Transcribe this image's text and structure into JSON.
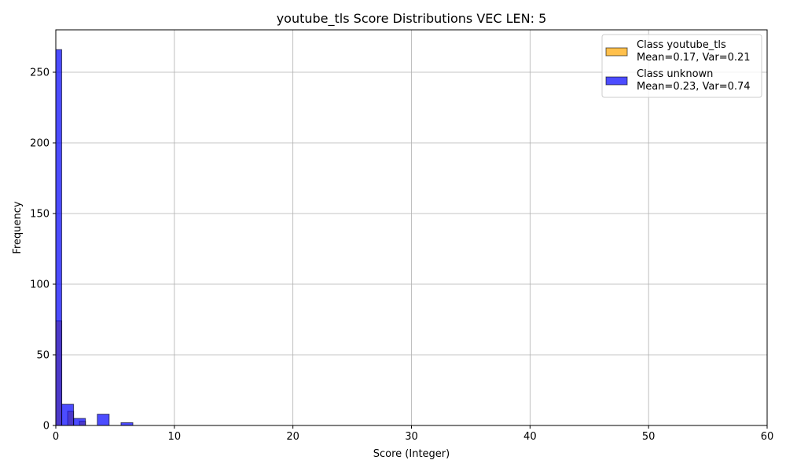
{
  "chart_data": {
    "type": "bar",
    "title": "youtube_tls Score Distributions VEC LEN: 5",
    "xlabel": "Score (Integer)",
    "ylabel": "Frequency",
    "xlim": [
      0,
      60
    ],
    "ylim": [
      0,
      280
    ],
    "xticks": [
      0,
      10,
      20,
      30,
      40,
      50,
      60
    ],
    "yticks": [
      0,
      50,
      100,
      150,
      200,
      250
    ],
    "grid": true,
    "legend_position": "top-right",
    "series": [
      {
        "name": "Class youtube_tls",
        "legend_stats": "Mean=0.17, Var=0.21",
        "color": "#FFA500",
        "bins": [
          {
            "x0": 0.0,
            "x1": 0.5,
            "count": 74
          },
          {
            "x0": 0.5,
            "x1": 1.0,
            "count": 0
          },
          {
            "x0": 1.0,
            "x1": 1.5,
            "count": 10
          },
          {
            "x0": 1.5,
            "x1": 2.0,
            "count": 0
          },
          {
            "x0": 2.0,
            "x1": 2.5,
            "count": 3
          }
        ]
      },
      {
        "name": "Class unknown",
        "legend_stats": "Mean=0.23, Var=0.74",
        "color": "#0000FF",
        "bins": [
          {
            "x0": 0.0,
            "x1": 0.5,
            "count": 266
          },
          {
            "x0": 0.5,
            "x1": 1.5,
            "count": 15
          },
          {
            "x0": 1.5,
            "x1": 2.5,
            "count": 5
          },
          {
            "x0": 3.5,
            "x1": 4.5,
            "count": 8
          },
          {
            "x0": 5.5,
            "x1": 6.5,
            "count": 2
          }
        ]
      }
    ]
  }
}
